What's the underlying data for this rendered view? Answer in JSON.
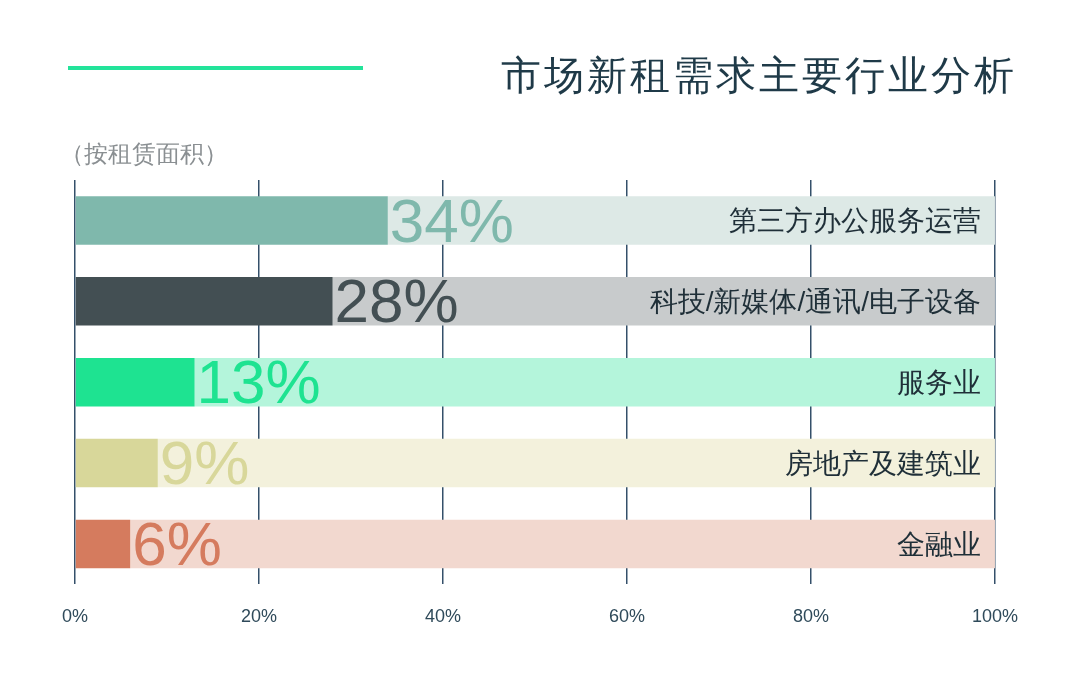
{
  "chart_data": {
    "type": "bar",
    "orientation": "horizontal",
    "title": "市场新租需求主要行业分析",
    "subtitle": "（按租赁面积）",
    "categories": [
      "第三方办公服务运营",
      "科技/新媒体/通讯/电子设备",
      "服务业",
      "房地产及建筑业",
      "金融业"
    ],
    "series": [
      {
        "colors": [
          "#7fb8ac",
          "#434f53",
          "#1ee391",
          "#d8d79a",
          "#d57b5e"
        ],
        "values": [
          34,
          28,
          13,
          9,
          6
        ],
        "value_labels": [
          "34%",
          "28%",
          "13%",
          "9%",
          "6%"
        ]
      },
      {
        "colors": [
          "#dde9e6",
          "#c8cbcc",
          "#b4f5db",
          "#f3f1dc",
          "#f2d8cf"
        ],
        "values": [
          66,
          72,
          87,
          91,
          94
        ]
      }
    ],
    "stacked": true,
    "xlim": [
      0,
      100
    ],
    "xticks": [
      {
        "value": 0,
        "label": "0%"
      },
      {
        "value": 20,
        "label": "20%"
      },
      {
        "value": 40,
        "label": "40%"
      },
      {
        "value": 60,
        "label": "60%"
      },
      {
        "value": 80,
        "label": "80%"
      },
      {
        "value": 100,
        "label": "100%"
      }
    ],
    "grid": "x",
    "legend": false
  }
}
